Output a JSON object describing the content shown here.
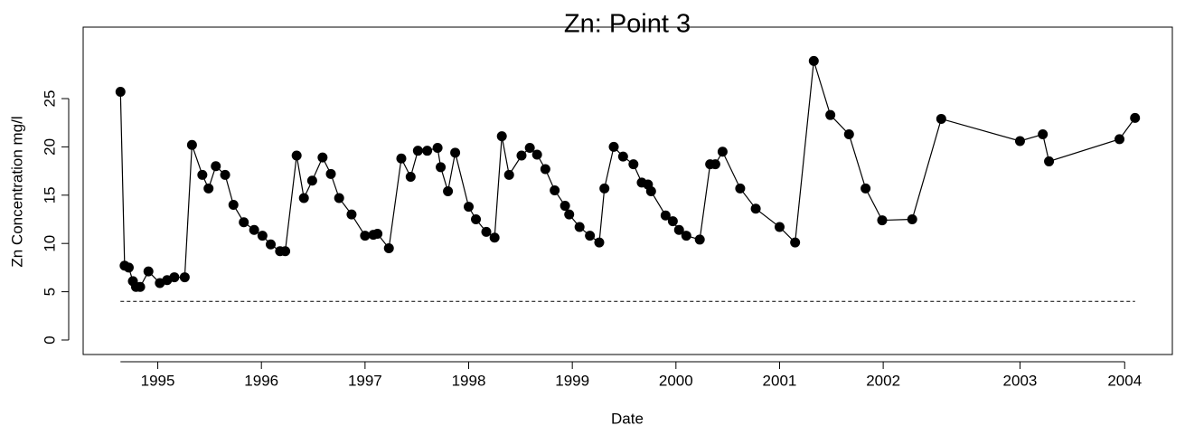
{
  "chart_data": {
    "type": "line",
    "title": "Zn:  Point 3",
    "xlabel": "Date",
    "ylabel": "Zn Concentration mg/l",
    "x": [
      1994.64,
      1994.68,
      1994.72,
      1994.76,
      1994.79,
      1994.83,
      1994.91,
      1995.02,
      1995.09,
      1995.16,
      1995.26,
      1995.33,
      1995.43,
      1995.49,
      1995.56,
      1995.65,
      1995.73,
      1995.83,
      1995.93,
      1996.01,
      1996.09,
      1996.18,
      1996.23,
      1996.34,
      1996.41,
      1996.49,
      1996.59,
      1996.67,
      1996.75,
      1996.87,
      1997.0,
      1997.08,
      1997.12,
      1997.23,
      1997.35,
      1997.44,
      1997.51,
      1997.6,
      1997.7,
      1997.73,
      1997.8,
      1997.87,
      1998.0,
      1998.07,
      1998.17,
      1998.25,
      1998.32,
      1998.39,
      1998.51,
      1998.59,
      1998.66,
      1998.74,
      1998.83,
      1998.93,
      1998.97,
      1999.07,
      1999.17,
      1999.26,
      1999.31,
      1999.4,
      1999.49,
      1999.59,
      1999.67,
      1999.73,
      1999.76,
      1999.9,
      1999.97,
      2000.03,
      2000.1,
      2000.23,
      2000.33,
      2000.38,
      2000.45,
      2000.62,
      2000.77,
      2001.0,
      2001.15,
      2001.33,
      2001.49,
      2001.67,
      2001.83,
      2001.99,
      2002.28,
      2002.56,
      2003.32,
      2003.54,
      2003.6,
      2004.28,
      2004.43
    ],
    "values": [
      25.7,
      7.7,
      7.5,
      6.1,
      5.5,
      5.5,
      7.1,
      5.9,
      6.2,
      6.5,
      6.5,
      20.2,
      17.1,
      15.7,
      18.0,
      17.1,
      14.0,
      12.2,
      11.4,
      10.8,
      9.9,
      9.2,
      9.2,
      19.1,
      14.7,
      16.5,
      18.9,
      17.2,
      14.7,
      13.0,
      10.8,
      10.9,
      11.0,
      9.5,
      18.8,
      16.9,
      19.6,
      19.6,
      19.9,
      17.9,
      15.4,
      19.4,
      13.8,
      12.5,
      11.2,
      10.6,
      21.1,
      17.1,
      19.1,
      19.9,
      19.2,
      17.7,
      15.5,
      13.9,
      13.0,
      11.7,
      10.8,
      10.1,
      15.7,
      20.0,
      19.0,
      18.2,
      16.3,
      16.1,
      15.4,
      12.9,
      12.3,
      11.4,
      10.8,
      10.4,
      18.2,
      18.2,
      19.5,
      15.7,
      13.6,
      11.7,
      10.1,
      28.9,
      23.3,
      21.3,
      15.7,
      12.4,
      12.5,
      22.9,
      20.6,
      21.3,
      18.5,
      20.8,
      23.0
    ],
    "color": "#000000",
    "reference_line": 4,
    "xlim": [
      1994.28,
      2004.79
    ],
    "ylim": [
      -1.5,
      32.4
    ],
    "xticks": [
      1995,
      1996,
      1997,
      1998,
      1999,
      2000,
      2001,
      2002,
      {
        "value": 2003.32,
        "label": "2003"
      },
      {
        "value": 2004.33,
        "label": "2004"
      }
    ],
    "yticks": [
      0,
      5,
      10,
      15,
      20,
      25
    ]
  }
}
